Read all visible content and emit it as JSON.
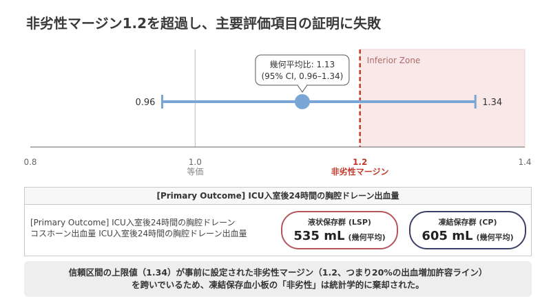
{
  "page": {
    "title": "非劣性マージン1.2を超過し、主要評価項目の証明に失敗"
  },
  "chart_data": {
    "type": "forest",
    "title": "",
    "xlabel": "",
    "ylabel": "",
    "xlim": [
      0.8,
      1.4
    ],
    "x_ticks": [
      0.8,
      1.0,
      1.2,
      1.4
    ],
    "x_tick_labels": [
      "0.8",
      "1.0",
      "1.2",
      "1.4"
    ],
    "reference_line": {
      "x": 1.0,
      "label": "等価"
    },
    "margin_line": {
      "x": 1.2,
      "label": "非劣性マージン"
    },
    "zone": {
      "from": 1.2,
      "to": 1.4,
      "label": "Inferior Zone"
    },
    "estimate": {
      "point": 1.13,
      "ci_low": 0.96,
      "ci_high": 1.34
    },
    "ci_low_label": "0.96",
    "ci_high_label": "1.34",
    "callout": {
      "line1": "幾何平均比: 1.13",
      "line2": "(95% CI, 0.96–1.34)"
    },
    "grid": false,
    "colors": {
      "estimate": "#7aa6d6",
      "margin": "#c0392b",
      "zone": "#f8e8e8",
      "reference": "#bbbbbb"
    }
  },
  "outcome": {
    "header": "[Primary Outcome] ICU入室後24時間の胸腔ドレーン出血量",
    "row_label_line1": "[Primary Outcome] ICU入室後24時間の胸腔ドレーン",
    "row_label_line2": "コスホーン出血量 ICU入室後24時間の胸腔ドレーン出血量",
    "groups": [
      {
        "name": "液状保存群 (LSP)",
        "value": "535 mL",
        "unit": "(幾何平均)",
        "color": "#b5545c"
      },
      {
        "name": "凍結保存群 (CP)",
        "value": "605 mL",
        "unit": "(幾何平均)",
        "color": "#3b3f66"
      }
    ]
  },
  "conclusion": {
    "line1": "信頼区間の上限値（1.34）が事前に設定された非劣性マージン（1.2、つまり20%の出血増加許容ライン）",
    "line2": "を跨いでいるため、凍結保存血小板の「非劣性」は統計学的に棄却された。"
  }
}
